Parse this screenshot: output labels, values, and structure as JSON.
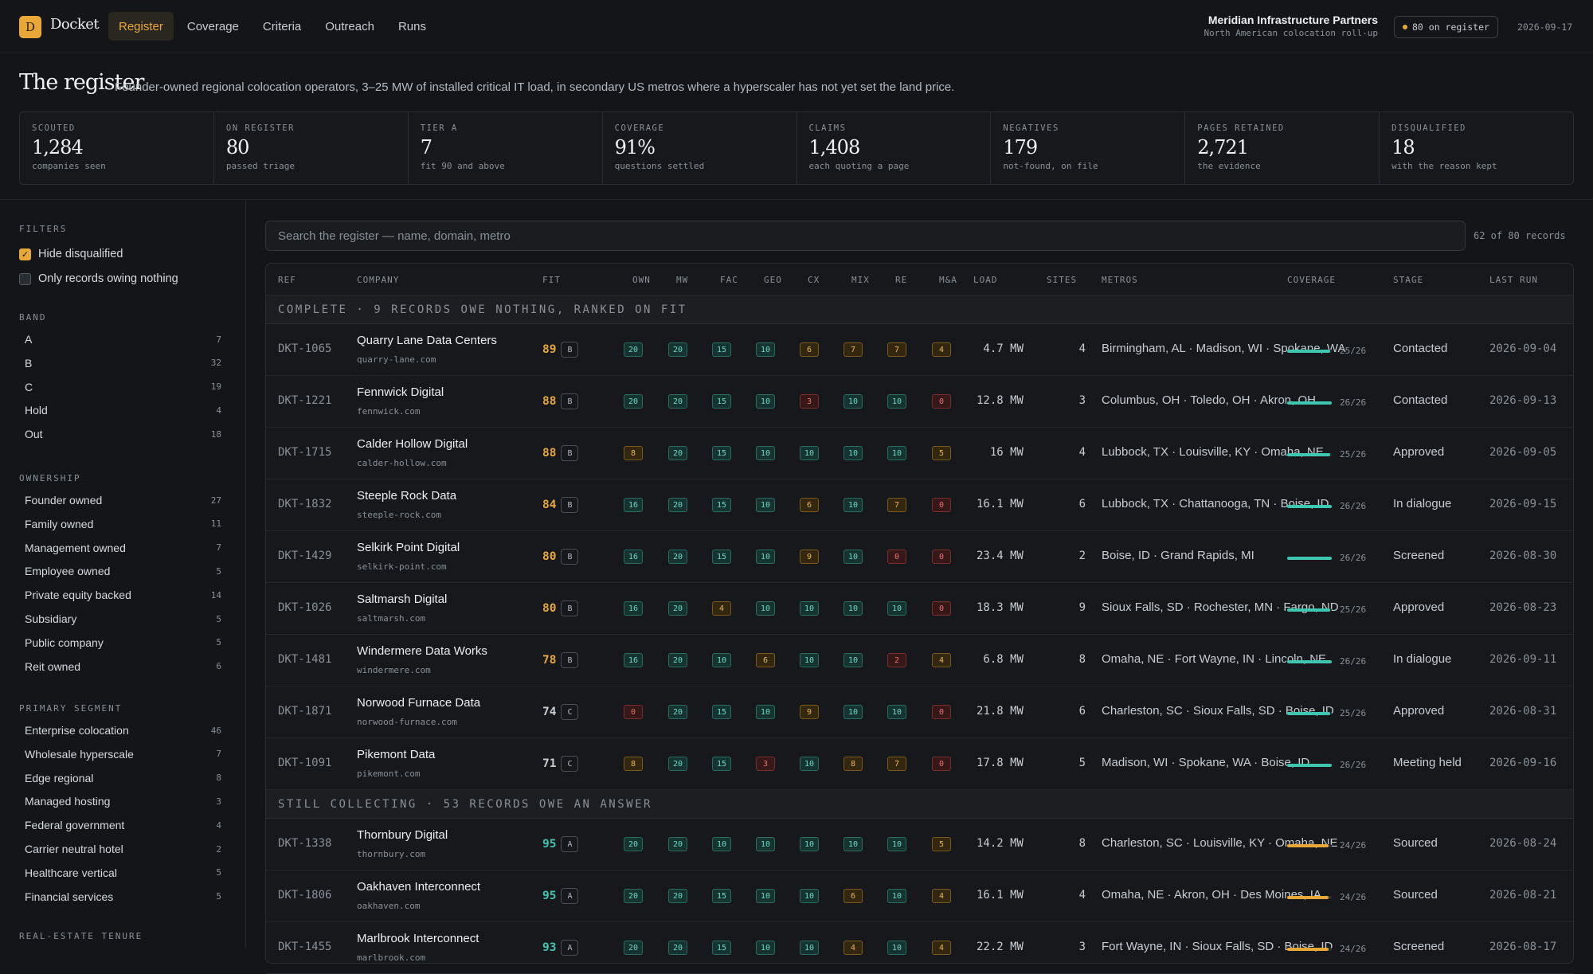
{
  "topbar": {
    "logo": "D",
    "brand": "Docket",
    "nav": [
      {
        "label": "Register",
        "active": true
      },
      {
        "label": "Coverage",
        "active": false
      },
      {
        "label": "Criteria",
        "active": false
      },
      {
        "label": "Outreach",
        "active": false
      },
      {
        "label": "Runs",
        "active": false
      }
    ],
    "org_name": "Meridian Infrastructure Partners",
    "org_sub": "North American colocation roll-up",
    "register_pill": "80 on register",
    "date": "2026-09-17"
  },
  "header": {
    "title": "The register",
    "description": "Founder-owned regional colocation operators, 3–25 MW of installed critical IT load, in secondary US metros where a hyperscaler has not yet set the land price."
  },
  "stats": [
    {
      "label": "SCOUTED",
      "value": "1,284",
      "sub": "companies seen"
    },
    {
      "label": "ON REGISTER",
      "value": "80",
      "sub": "passed triage"
    },
    {
      "label": "TIER A",
      "value": "7",
      "sub": "fit 90 and above"
    },
    {
      "label": "COVERAGE",
      "value": "91%",
      "sub": "questions settled"
    },
    {
      "label": "CLAIMS",
      "value": "1,408",
      "sub": "each quoting a page"
    },
    {
      "label": "NEGATIVES",
      "value": "179",
      "sub": "not-found, on file"
    },
    {
      "label": "PAGES RETAINED",
      "value": "2,721",
      "sub": "the evidence"
    },
    {
      "label": "DISQUALIFIED",
      "value": "18",
      "sub": "with the reason kept"
    }
  ],
  "filters": {
    "heading": "FILTERS",
    "checks": [
      {
        "label": "Hide disqualified",
        "checked": true
      },
      {
        "label": "Only records owing nothing",
        "checked": false
      }
    ],
    "groups": [
      {
        "heading": "BAND",
        "items": [
          {
            "label": "A",
            "count": "7"
          },
          {
            "label": "B",
            "count": "32"
          },
          {
            "label": "C",
            "count": "19"
          },
          {
            "label": "Hold",
            "count": "4"
          },
          {
            "label": "Out",
            "count": "18"
          }
        ]
      },
      {
        "heading": "OWNERSHIP",
        "items": [
          {
            "label": "Founder owned",
            "count": "27"
          },
          {
            "label": "Family owned",
            "count": "11"
          },
          {
            "label": "Management owned",
            "count": "7"
          },
          {
            "label": "Employee owned",
            "count": "5"
          },
          {
            "label": "Private equity backed",
            "count": "14"
          },
          {
            "label": "Subsidiary",
            "count": "5"
          },
          {
            "label": "Public company",
            "count": "5"
          },
          {
            "label": "Reit owned",
            "count": "6"
          }
        ]
      },
      {
        "heading": "PRIMARY SEGMENT",
        "items": [
          {
            "label": "Enterprise colocation",
            "count": "46"
          },
          {
            "label": "Wholesale hyperscale",
            "count": "7"
          },
          {
            "label": "Edge regional",
            "count": "8"
          },
          {
            "label": "Managed hosting",
            "count": "3"
          },
          {
            "label": "Federal government",
            "count": "4"
          },
          {
            "label": "Carrier neutral hotel",
            "count": "2"
          },
          {
            "label": "Healthcare vertical",
            "count": "5"
          },
          {
            "label": "Financial services",
            "count": "5"
          }
        ]
      },
      {
        "heading": "REAL-ESTATE TENURE",
        "items": []
      }
    ]
  },
  "search": {
    "placeholder": "Search the register — name, domain, metro",
    "count": "62 of 80 records"
  },
  "table": {
    "columns": [
      "REF",
      "COMPANY",
      "FIT",
      "OWN",
      "MW",
      "FAC",
      "GEO",
      "CX",
      "MIX",
      "RE",
      "M&A",
      "LOAD",
      "SITES",
      "METROS",
      "COVERAGE",
      "STAGE",
      "LAST RUN"
    ],
    "sections": [
      {
        "label": "COMPLETE · 9 RECORDS OWE NOTHING, RANKED ON FIT",
        "rows": [
          {
            "ref": "DKT-1065",
            "name": "Quarry Lane Data Centers",
            "domain": "quarry-lane.com",
            "fit": "89",
            "band": "B",
            "scores": [
              "20",
              "20",
              "15",
              "10",
              "6",
              "7",
              "7",
              "4"
            ],
            "load": "4.7 MW",
            "sites": "4",
            "metros": "Birmingham, AL · Madison, WI · Spokane, WA",
            "coverage": "25/26",
            "stage": "Contacted",
            "last_run": "2026-09-04"
          },
          {
            "ref": "DKT-1221",
            "name": "Fennwick Digital",
            "domain": "fennwick.com",
            "fit": "88",
            "band": "B",
            "scores": [
              "20",
              "20",
              "15",
              "10",
              "3",
              "10",
              "10",
              "0"
            ],
            "load": "12.8 MW",
            "sites": "3",
            "metros": "Columbus, OH · Toledo, OH · Akron, OH",
            "coverage": "26/26",
            "stage": "Contacted",
            "last_run": "2026-09-13"
          },
          {
            "ref": "DKT-1715",
            "name": "Calder Hollow Digital",
            "domain": "calder-hollow.com",
            "fit": "88",
            "band": "B",
            "scores": [
              "8",
              "20",
              "15",
              "10",
              "10",
              "10",
              "10",
              "5"
            ],
            "load": "16 MW",
            "sites": "4",
            "metros": "Lubbock, TX · Louisville, KY · Omaha, NE",
            "coverage": "25/26",
            "stage": "Approved",
            "last_run": "2026-09-05"
          },
          {
            "ref": "DKT-1832",
            "name": "Steeple Rock Data",
            "domain": "steeple-rock.com",
            "fit": "84",
            "band": "B",
            "scores": [
              "16",
              "20",
              "15",
              "10",
              "6",
              "10",
              "7",
              "0"
            ],
            "load": "16.1 MW",
            "sites": "6",
            "metros": "Lubbock, TX · Chattanooga, TN · Boise, ID",
            "coverage": "26/26",
            "stage": "In dialogue",
            "last_run": "2026-09-15"
          },
          {
            "ref": "DKT-1429",
            "name": "Selkirk Point Digital",
            "domain": "selkirk-point.com",
            "fit": "80",
            "band": "B",
            "scores": [
              "16",
              "20",
              "15",
              "10",
              "9",
              "10",
              "0",
              "0"
            ],
            "load": "23.4 MW",
            "sites": "2",
            "metros": "Boise, ID · Grand Rapids, MI",
            "coverage": "26/26",
            "stage": "Screened",
            "last_run": "2026-08-30"
          },
          {
            "ref": "DKT-1026",
            "name": "Saltmarsh Digital",
            "domain": "saltmarsh.com",
            "fit": "80",
            "band": "B",
            "scores": [
              "16",
              "20",
              "4",
              "10",
              "10",
              "10",
              "10",
              "0"
            ],
            "load": "18.3 MW",
            "sites": "9",
            "metros": "Sioux Falls, SD · Rochester, MN · Fargo, ND",
            "coverage": "25/26",
            "stage": "Approved",
            "last_run": "2026-08-23"
          },
          {
            "ref": "DKT-1481",
            "name": "Windermere Data Works",
            "domain": "windermere.com",
            "fit": "78",
            "band": "B",
            "scores": [
              "16",
              "20",
              "10",
              "6",
              "10",
              "10",
              "2",
              "4"
            ],
            "load": "6.8 MW",
            "sites": "8",
            "metros": "Omaha, NE · Fort Wayne, IN · Lincoln, NE",
            "coverage": "26/26",
            "stage": "In dialogue",
            "last_run": "2026-09-11"
          },
          {
            "ref": "DKT-1871",
            "name": "Norwood Furnace Data",
            "domain": "norwood-furnace.com",
            "fit": "74",
            "band": "C",
            "scores": [
              "0",
              "20",
              "15",
              "10",
              "9",
              "10",
              "10",
              "0"
            ],
            "load": "21.8 MW",
            "sites": "6",
            "metros": "Charleston, SC · Sioux Falls, SD · Boise, ID",
            "coverage": "25/26",
            "stage": "Approved",
            "last_run": "2026-08-31"
          },
          {
            "ref": "DKT-1091",
            "name": "Pikemont Data",
            "domain": "pikemont.com",
            "fit": "71",
            "band": "C",
            "scores": [
              "8",
              "20",
              "15",
              "3",
              "10",
              "8",
              "7",
              "0"
            ],
            "load": "17.8 MW",
            "sites": "5",
            "metros": "Madison, WI · Spokane, WA · Boise, ID",
            "coverage": "26/26",
            "stage": "Meeting held",
            "last_run": "2026-09-16"
          }
        ]
      },
      {
        "label": "STILL COLLECTING · 53 RECORDS OWE AN ANSWER",
        "rows": [
          {
            "ref": "DKT-1338",
            "name": "Thornbury Digital",
            "domain": "thornbury.com",
            "fit": "95",
            "band": "A",
            "scores": [
              "20",
              "20",
              "10",
              "10",
              "10",
              "10",
              "10",
              "5"
            ],
            "load": "14.2 MW",
            "sites": "8",
            "metros": "Charleston, SC · Louisville, KY · Omaha, NE",
            "coverage": "24/26",
            "stage": "Sourced",
            "last_run": "2026-08-24"
          },
          {
            "ref": "DKT-1806",
            "name": "Oakhaven Interconnect",
            "domain": "oakhaven.com",
            "fit": "95",
            "band": "A",
            "scores": [
              "20",
              "20",
              "15",
              "10",
              "10",
              "6",
              "10",
              "4"
            ],
            "load": "16.1 MW",
            "sites": "4",
            "metros": "Omaha, NE · Akron, OH · Des Moines, IA",
            "coverage": "24/26",
            "stage": "Sourced",
            "last_run": "2026-08-21"
          },
          {
            "ref": "DKT-1455",
            "name": "Marlbrook Interconnect",
            "domain": "marlbrook.com",
            "fit": "93",
            "band": "A",
            "scores": [
              "20",
              "20",
              "15",
              "10",
              "10",
              "4",
              "10",
              "4"
            ],
            "load": "22.2 MW",
            "sites": "3",
            "metros": "Fort Wayne, IN · Sioux Falls, SD · Boise, ID",
            "coverage": "24/26",
            "stage": "Screened",
            "last_run": "2026-08-17"
          }
        ]
      }
    ]
  },
  "colors": {
    "accent": "#e8a838",
    "good": "#3fc6b0",
    "warn": "#e8a838",
    "bad": "#ef6f6f",
    "background": "#131518"
  }
}
